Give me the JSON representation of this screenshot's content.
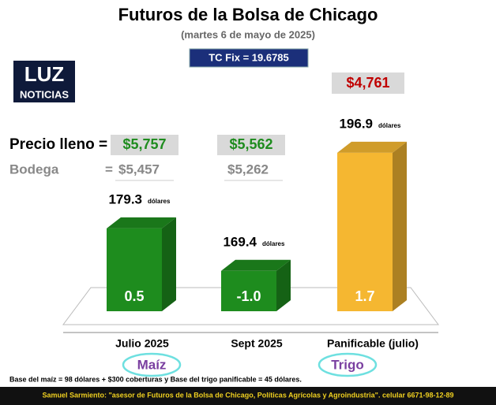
{
  "chart_data": {
    "type": "bar3d",
    "title": "Futuros de la Bolsa de Chicago",
    "subtitle": "(martes 6 de mayo de 2025)",
    "exchange_rate": "TC Fix = 19.6785",
    "logo": {
      "top": "LUZ",
      "bottom": "NOTICIAS"
    },
    "categories": [
      "Julio 2025",
      "Sept 2025",
      "Panificable (julio)"
    ],
    "values": [
      179.3,
      169.4,
      196.9
    ],
    "unit": "dólares",
    "colors": [
      "#1e8c1e",
      "#1e8c1e",
      "#f5b731"
    ],
    "changes": [
      0.5,
      -1,
      1.7
    ],
    "change_labels": [
      "0.5",
      "-1.0",
      "1.7"
    ],
    "ylim": [
      160,
      200
    ],
    "price_full_label": "Precio lleno =",
    "price_full": [
      "$5,757",
      "$5,562",
      "$4,761"
    ],
    "warehouse_label": "Bodega",
    "warehouse_eq": "=",
    "warehouse": [
      "$5,457",
      "$5,262"
    ],
    "groups": [
      "Maíz",
      "Trigo"
    ],
    "footnote": "Base del maíz = 98 dólares + $300 coberturas y Base del trigo panificable = 45 dólares.",
    "credit": "Samuel Sarmiento: \"asesor de Futuros de la Bolsa de Chicago, Políticas Agrícolas y Agroindustria\". celular 6671-98-12-89"
  }
}
